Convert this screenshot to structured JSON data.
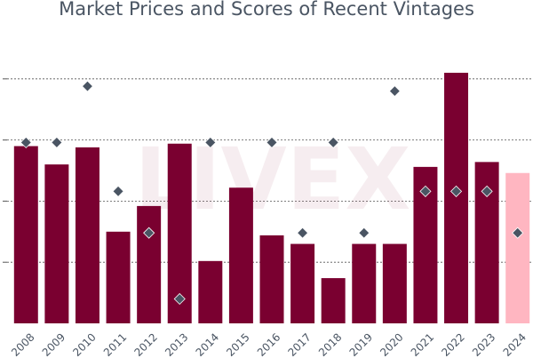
{
  "chart_data": {
    "type": "bar",
    "title": "Market Prices and Scores of Recent Vintages",
    "watermark": "LIVEX",
    "categories": [
      "2008",
      "2009",
      "2010",
      "2011",
      "2012",
      "2013",
      "2014",
      "2015",
      "2016",
      "2017",
      "2018",
      "2019",
      "2020",
      "2021",
      "2022",
      "2023",
      "2024"
    ],
    "series": [
      {
        "kind": "bar",
        "values": [
          3.45,
          3.3,
          3.44,
          2.75,
          2.96,
          3.47,
          2.51,
          3.11,
          2.72,
          2.65,
          2.37,
          2.65,
          2.65,
          3.28,
          4.05,
          3.32,
          3.23
        ],
        "colors": [
          "#7a0030",
          "#7a0030",
          "#7a0030",
          "#7a0030",
          "#7a0030",
          "#7a0030",
          "#7a0030",
          "#7a0030",
          "#7a0030",
          "#7a0030",
          "#7a0030",
          "#7a0030",
          "#7a0030",
          "#7a0030",
          "#7a0030",
          "#7a0030",
          "#ffb6c1"
        ]
      },
      {
        "kind": "scatter",
        "marker": "diamond",
        "color": "#4a5563",
        "values": [
          3.48,
          3.48,
          3.94,
          3.08,
          2.74,
          2.2,
          3.48,
          null,
          3.48,
          2.74,
          3.48,
          2.74,
          3.9,
          3.08,
          3.08,
          3.08,
          2.74
        ]
      }
    ],
    "ylim": [
      2.0,
      4.5
    ],
    "gridlines": [
      2.5,
      3.0,
      3.5,
      4.0
    ],
    "grid": true,
    "grid_style": "dotted",
    "ytick_labels_visible": false,
    "xtick_rotation": -45
  }
}
